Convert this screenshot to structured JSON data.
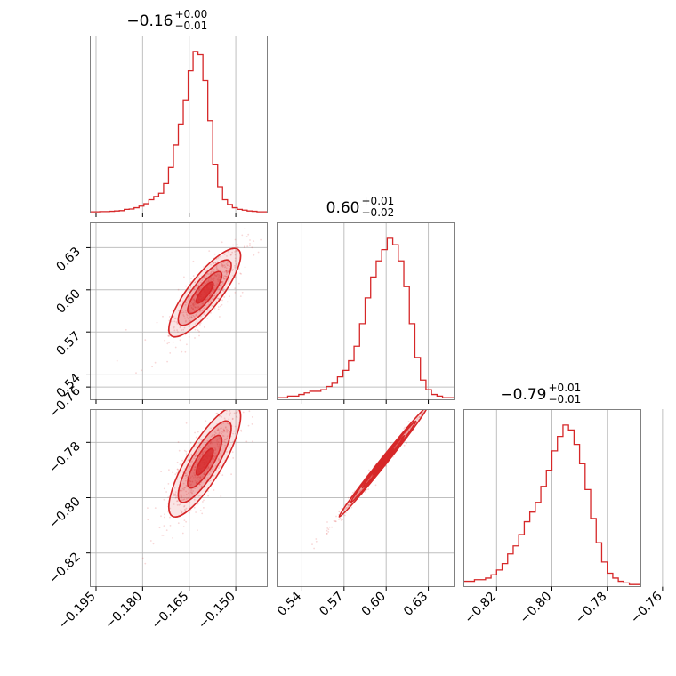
{
  "chart_data": {
    "type": "corner",
    "color": "#d62728",
    "parameters": [
      {
        "title_value": "−0.16",
        "title_plus": "+0.00",
        "title_minus": "−0.01",
        "range": [
          -0.197,
          -0.14
        ],
        "ticks": [
          -0.195,
          -0.18,
          -0.165,
          -0.15
        ],
        "tick_labels": [
          "−0.195",
          "−0.180",
          "−0.165",
          "−0.150"
        ],
        "histogram": [
          0.5,
          0.5,
          0.6,
          0.6,
          0.8,
          1,
          1.2,
          2,
          2.2,
          3,
          4,
          5.5,
          8,
          10,
          12,
          18,
          28,
          42,
          55,
          70,
          88,
          100,
          98,
          82,
          57,
          30,
          16,
          8,
          5,
          3,
          2,
          1.5,
          1,
          0.8,
          0.5,
          0.5
        ]
      },
      {
        "title_value": "0.60",
        "title_plus": "+0.01",
        "title_minus": "−0.02",
        "range": [
          0.522,
          0.648
        ],
        "ticks": [
          0.54,
          0.57,
          0.6,
          0.63
        ],
        "tick_labels": [
          "0.54",
          "0.57",
          "0.60",
          "0.63"
        ],
        "histogram": [
          1,
          1,
          2,
          2,
          3,
          4,
          5,
          5,
          6,
          8,
          10,
          14,
          18,
          24,
          33,
          47,
          63,
          76,
          86,
          93,
          100,
          96,
          86,
          70,
          47,
          26,
          12,
          6,
          3,
          2,
          1,
          1
        ]
      },
      {
        "title_value": "−0.79",
        "title_plus": "+0.01",
        "title_minus": "−0.01",
        "range": [
          -0.832,
          -0.768
        ],
        "ticks": [
          -0.82,
          -0.8,
          -0.78,
          -0.76
        ],
        "tick_labels": [
          "−0.82",
          "−0.80",
          "−0.78",
          "−0.76"
        ],
        "histogram": [
          3,
          3,
          4,
          4,
          5,
          7,
          10,
          14,
          20,
          25,
          32,
          40,
          46,
          52,
          62,
          72,
          84,
          93,
          100,
          97,
          88,
          76,
          60,
          42,
          27,
          15,
          8,
          5,
          3,
          2,
          1,
          1
        ]
      }
    ],
    "correlations": [
      {
        "pair": [
          0,
          1
        ],
        "center": [
          -0.16,
          0.598
        ],
        "sd": [
          0.0055,
          0.015
        ],
        "rho": 0.83
      },
      {
        "pair": [
          0,
          2
        ],
        "center": [
          -0.16,
          -0.787
        ],
        "sd": [
          0.0055,
          0.0095
        ],
        "rho": 0.82
      },
      {
        "pair": [
          1,
          2
        ],
        "center": [
          0.598,
          -0.787
        ],
        "sd": [
          0.015,
          0.0095
        ],
        "rho": 0.995
      }
    ]
  }
}
